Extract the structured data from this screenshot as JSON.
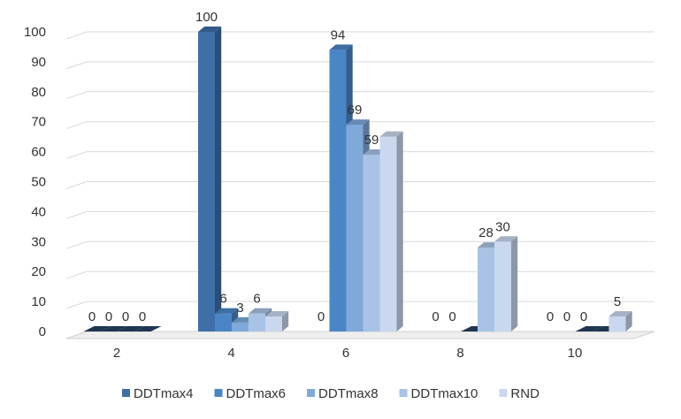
{
  "chart_data": {
    "type": "bar",
    "style": "3d-clustered-column",
    "categories": [
      "2",
      "4",
      "6",
      "8",
      "10"
    ],
    "series": [
      {
        "name": "DDTmax4",
        "values": [
          0,
          100,
          null,
          null,
          null
        ],
        "color": "#3E6FA8"
      },
      {
        "name": "DDTmax6",
        "values": [
          0,
          6,
          94,
          null,
          null
        ],
        "color": "#4A86C6"
      },
      {
        "name": "DDTmax8",
        "values": [
          0,
          3,
          69,
          0,
          0
        ],
        "color": "#7FA9DB"
      },
      {
        "name": "DDTmax10",
        "values": [
          0,
          6,
          59,
          28,
          0
        ],
        "color": "#A9C3E6"
      },
      {
        "name": "RND",
        "values": [
          null,
          5,
          65,
          30,
          5
        ],
        "color": "#C9D8EF"
      }
    ],
    "data_labels": [
      {
        "category": "2",
        "series": "DDTmax4",
        "text": "0"
      },
      {
        "category": "2",
        "series": "DDTmax6",
        "text": "0"
      },
      {
        "category": "2",
        "series": "DDTmax8",
        "text": "0"
      },
      {
        "category": "2",
        "series": "DDTmax10",
        "text": "0"
      },
      {
        "category": "4",
        "series": "DDTmax4",
        "text": "100"
      },
      {
        "category": "4",
        "series": "DDTmax6",
        "text": "6"
      },
      {
        "category": "4",
        "series": "DDTmax8",
        "text": "3"
      },
      {
        "category": "4",
        "series": "DDTmax10",
        "text": "6"
      },
      {
        "category": "6",
        "series": "DDTmax4",
        "text": "0"
      },
      {
        "category": "6",
        "series": "DDTmax6",
        "text": "94"
      },
      {
        "category": "6",
        "series": "DDTmax8",
        "text": "69"
      },
      {
        "category": "6",
        "series": "DDTmax10",
        "text": "59"
      },
      {
        "category": "8",
        "series": "DDTmax4",
        "text": "0"
      },
      {
        "category": "8",
        "series": "DDTmax6",
        "text": "0"
      },
      {
        "category": "8",
        "series": "DDTmax10",
        "text": "28"
      },
      {
        "category": "8",
        "series": "RND",
        "text": "30"
      },
      {
        "category": "10",
        "series": "DDTmax4",
        "text": "0"
      },
      {
        "category": "10",
        "series": "DDTmax6",
        "text": "0"
      },
      {
        "category": "10",
        "series": "DDTmax8",
        "text": "0"
      },
      {
        "category": "10",
        "series": "RND",
        "text": "5"
      }
    ],
    "yticks": [
      "0",
      "10",
      "20",
      "30",
      "40",
      "50",
      "60",
      "70",
      "80",
      "90",
      "100"
    ],
    "ylim": [
      0,
      100
    ],
    "grid": true,
    "legend_position": "bottom"
  }
}
